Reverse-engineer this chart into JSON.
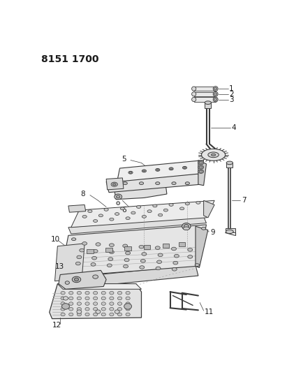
{
  "title": "8151 1700",
  "bg_color": "#ffffff",
  "line_color": "#3a3a3a",
  "label_color": "#1a1a1a",
  "title_fontsize": 10,
  "label_fontsize": 7.5,
  "fig_width": 4.11,
  "fig_height": 5.33,
  "dpi": 100
}
